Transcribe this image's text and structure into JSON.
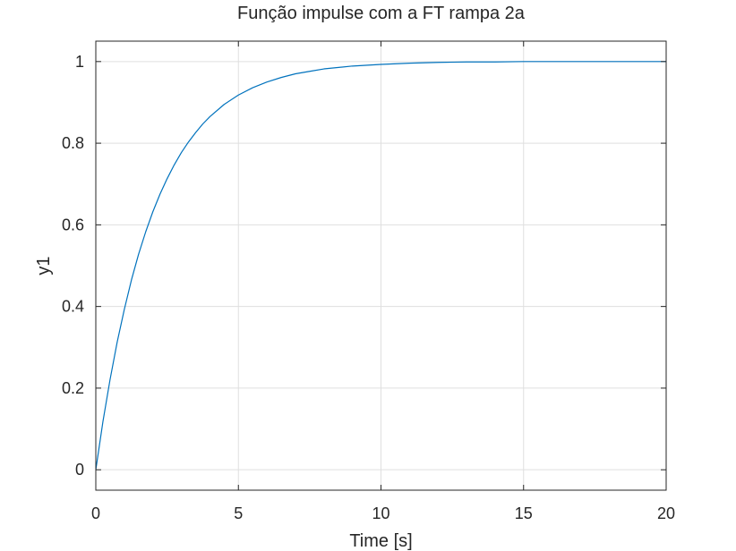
{
  "chart_data": {
    "type": "line",
    "title": "Função impulse com a FT rampa 2a",
    "xlabel": "Time [s]",
    "ylabel": "y1",
    "xlim": [
      0,
      20
    ],
    "ylim": [
      -0.05,
      1.05
    ],
    "xticks": [
      0,
      5,
      10,
      15,
      20
    ],
    "yticks": [
      0,
      0.2,
      0.4,
      0.6,
      0.8,
      1
    ],
    "grid": true,
    "series": [
      {
        "color": "#0072bd",
        "x": [
          0,
          0.25,
          0.5,
          0.75,
          1,
          1.25,
          1.5,
          1.75,
          2,
          2.25,
          2.5,
          2.75,
          3,
          3.25,
          3.5,
          3.75,
          4,
          4.5,
          5,
          5.5,
          6,
          6.5,
          7,
          7.5,
          8,
          9,
          10,
          11,
          12,
          13,
          14,
          15,
          16,
          17,
          18,
          19,
          20
        ],
        "y": [
          0,
          0.118,
          0.221,
          0.313,
          0.393,
          0.465,
          0.528,
          0.583,
          0.632,
          0.675,
          0.713,
          0.747,
          0.777,
          0.803,
          0.826,
          0.847,
          0.865,
          0.895,
          0.918,
          0.936,
          0.95,
          0.961,
          0.97,
          0.976,
          0.982,
          0.989,
          0.993,
          0.996,
          0.998,
          0.999,
          0.999,
          1.0,
          1.0,
          1.0,
          1.0,
          1.0,
          1.0
        ]
      }
    ]
  }
}
